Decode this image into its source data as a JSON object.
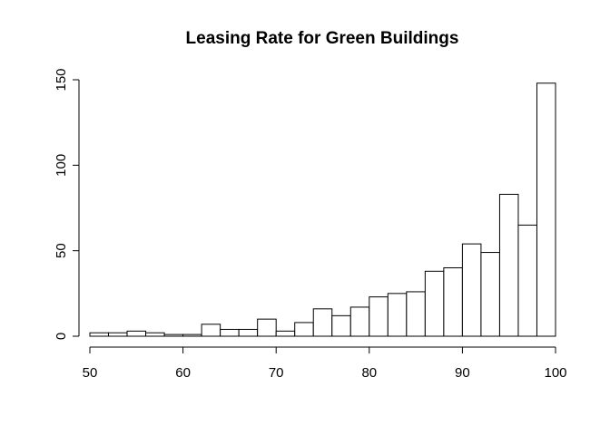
{
  "chart_data": {
    "type": "bar",
    "title": "Leasing Rate for Green Buildings",
    "xlabel": "",
    "ylabel": "",
    "bin_edges": [
      50,
      52,
      54,
      56,
      58,
      60,
      62,
      64,
      66,
      68,
      70,
      72,
      74,
      76,
      78,
      80,
      82,
      84,
      86,
      88,
      90,
      92,
      94,
      96,
      98,
      100
    ],
    "values": [
      2,
      2,
      3,
      2,
      1,
      1,
      7,
      4,
      4,
      10,
      3,
      8,
      16,
      12,
      17,
      23,
      25,
      26,
      38,
      40,
      54,
      49,
      83,
      65,
      148
    ],
    "xlim": [
      50,
      100
    ],
    "ylim": [
      0,
      150
    ],
    "x_ticks": [
      "50",
      "60",
      "70",
      "80",
      "90",
      "100"
    ],
    "y_ticks": [
      "0",
      "50",
      "100",
      "150"
    ],
    "grid": false,
    "bar_fill": "#ffffff",
    "bar_stroke": "#000000"
  }
}
